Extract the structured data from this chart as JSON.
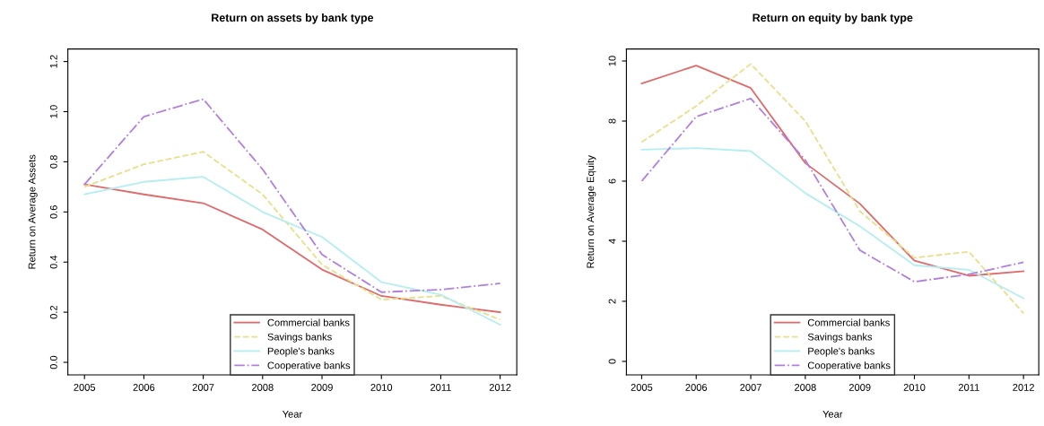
{
  "chart_data": [
    {
      "type": "line",
      "title": "Return on assets by bank type",
      "xlabel": "Year",
      "ylabel": "Return on Average Assets",
      "x": [
        2005,
        2006,
        2007,
        2008,
        2009,
        2010,
        2011,
        2012
      ],
      "xlim": [
        2004.72,
        2012.28
      ],
      "xticks": [
        2005,
        2006,
        2007,
        2008,
        2009,
        2010,
        2011,
        2012
      ],
      "ylim": [
        -0.05,
        1.25
      ],
      "yticks": [
        {
          "value": 0,
          "label": "0.0"
        },
        0.2,
        0.4,
        0.6,
        0.8,
        {
          "value": 1,
          "label": "1.0"
        },
        1.2
      ],
      "legend": "bottom",
      "grid": false,
      "series": [
        {
          "name": "Commercial banks",
          "color": "#e06a6a",
          "line_style": "solid",
          "values": [
            0.71,
            0.67,
            0.635,
            0.53,
            0.37,
            0.265,
            0.23,
            0.2
          ]
        },
        {
          "name": "Savings banks",
          "color": "#e8df8a",
          "line_style": "dashed",
          "values": [
            0.7,
            0.79,
            0.84,
            0.67,
            0.39,
            0.25,
            0.265,
            0.17
          ]
        },
        {
          "name": "People's banks",
          "color": "#b4eef0",
          "line_style": "solid",
          "values": [
            0.67,
            0.72,
            0.74,
            0.6,
            0.5,
            0.32,
            0.27,
            0.15
          ]
        },
        {
          "name": "Cooperative banks",
          "color": "#b07fe0",
          "line_style": "dotted",
          "values": [
            0.71,
            0.98,
            1.05,
            0.77,
            0.43,
            0.28,
            0.29,
            0.315
          ]
        }
      ]
    },
    {
      "type": "line",
      "title": "Return on equity by bank type",
      "xlabel": "Year",
      "ylabel": "Return on Average Equity",
      "x": [
        2005,
        2006,
        2007,
        2008,
        2009,
        2010,
        2011,
        2012
      ],
      "xlim": [
        2004.72,
        2012.28
      ],
      "xticks": [
        2005,
        2006,
        2007,
        2008,
        2009,
        2010,
        2011,
        2012
      ],
      "ylim": [
        -0.45,
        10.4
      ],
      "yticks": [
        0,
        2,
        4,
        6,
        8,
        10
      ],
      "legend": "bottom",
      "grid": false,
      "series": [
        {
          "name": "Commercial banks",
          "color": "#e06a6a",
          "line_style": "solid",
          "values": [
            9.25,
            9.85,
            9.1,
            6.6,
            5.25,
            3.35,
            2.85,
            3.0
          ]
        },
        {
          "name": "Savings banks",
          "color": "#e8df8a",
          "line_style": "dashed",
          "values": [
            7.3,
            8.5,
            9.9,
            8.0,
            5.0,
            3.45,
            3.65,
            1.6
          ]
        },
        {
          "name": "People's banks",
          "color": "#b4eef0",
          "line_style": "solid",
          "values": [
            7.05,
            7.1,
            7.0,
            5.6,
            4.5,
            3.2,
            3.05,
            2.1
          ]
        },
        {
          "name": "Cooperative banks",
          "color": "#b07fe0",
          "line_style": "dotted",
          "values": [
            6.0,
            8.15,
            8.75,
            6.7,
            3.7,
            2.65,
            2.9,
            3.3
          ]
        }
      ]
    }
  ]
}
